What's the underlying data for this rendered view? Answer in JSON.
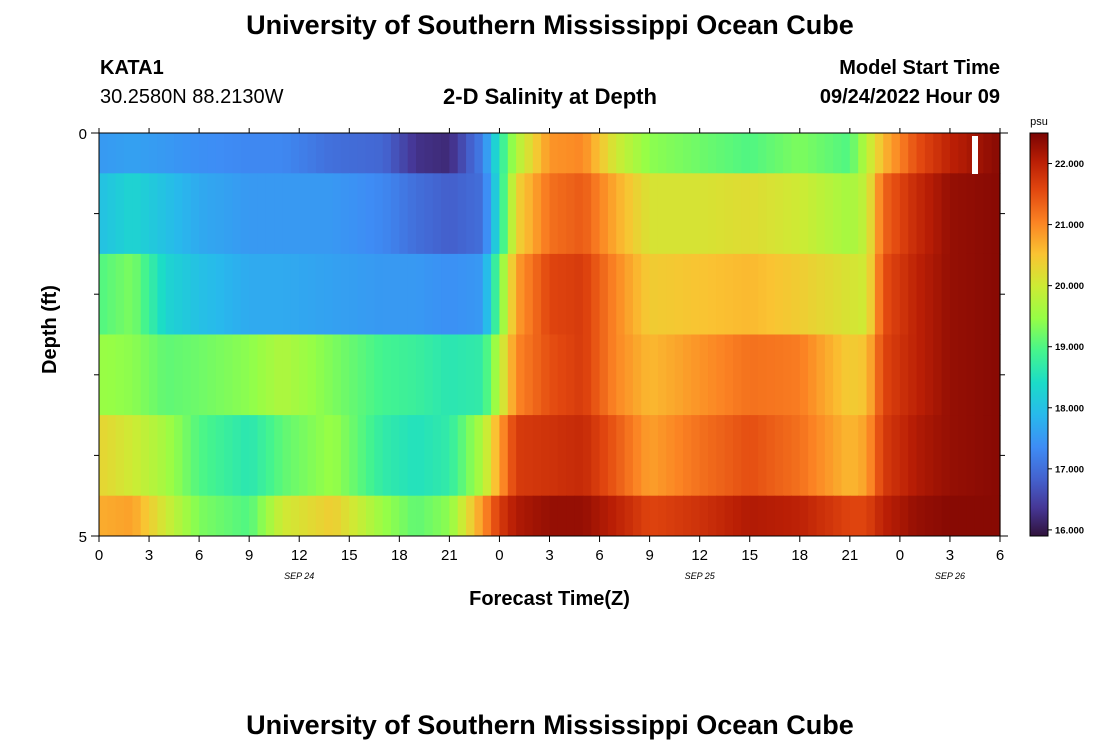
{
  "header": {
    "title": "University of Southern Mississippi Ocean Cube",
    "station": "KATA1",
    "coords": "30.2580N  88.2130W",
    "product": "2-D Salinity at Depth",
    "model_start_label": "Model Start Time",
    "model_start_value": "09/24/2022 Hour 09"
  },
  "footer": {
    "title": "University of Southern Mississippi Ocean Cube"
  },
  "chart_data": {
    "type": "heatmap",
    "title": "2-D Salinity at Depth",
    "xlabel": "Forecast Time(Z)",
    "ylabel": "Depth (ft)",
    "colorbar_unit": "psu",
    "colorbar_ticks": [
      "16.000",
      "17.000",
      "18.000",
      "19.000",
      "20.000",
      "21.000",
      "22.000"
    ],
    "colorbar_range": [
      15.9,
      22.5
    ],
    "x_tick_labels": [
      "0",
      "3",
      "6",
      "9",
      "12",
      "15",
      "18",
      "21",
      "0",
      "3",
      "6",
      "9",
      "12",
      "15",
      "18",
      "21",
      "0",
      "3",
      "6"
    ],
    "date_labels": [
      {
        "label": "SEP 24",
        "hour": 12
      },
      {
        "label": "SEP 25",
        "hour": 36
      },
      {
        "label": "SEP 26",
        "hour": 51
      }
    ],
    "x_range_hours": [
      0,
      54
    ],
    "y_tick_labels": [
      "0",
      "5"
    ],
    "y_range": [
      0,
      5
    ],
    "current_time_marker_hour": 52.5,
    "depth_rows": [
      0,
      1,
      2,
      3,
      4,
      5
    ],
    "salinity_keyframes": [
      {
        "hour": 0,
        "rows": [
          17.5,
          18.0,
          19.0,
          19.5,
          20.3,
          20.7
        ]
      },
      {
        "hour": 2,
        "rows": [
          17.6,
          18.3,
          19.3,
          19.4,
          20.0,
          20.8
        ]
      },
      {
        "hour": 4,
        "rows": [
          17.5,
          18.0,
          18.3,
          19.1,
          19.6,
          20.0
        ]
      },
      {
        "hour": 6,
        "rows": [
          17.4,
          17.7,
          18.0,
          19.2,
          19.0,
          19.3
        ]
      },
      {
        "hour": 9,
        "rows": [
          17.3,
          17.5,
          17.7,
          19.4,
          18.6,
          19.0
        ]
      },
      {
        "hour": 11,
        "rows": [
          17.3,
          17.5,
          17.7,
          19.7,
          19.1,
          20.0
        ]
      },
      {
        "hour": 14,
        "rows": [
          17.0,
          17.5,
          17.6,
          19.3,
          19.5,
          20.4
        ]
      },
      {
        "hour": 17,
        "rows": [
          16.9,
          17.3,
          17.5,
          18.9,
          18.7,
          19.5
        ]
      },
      {
        "hour": 19,
        "rows": [
          16.3,
          17.0,
          17.5,
          18.8,
          18.5,
          19.1
        ]
      },
      {
        "hour": 21,
        "rows": [
          16.2,
          16.8,
          17.4,
          18.6,
          18.7,
          19.4
        ]
      },
      {
        "hour": 23,
        "rows": [
          17.2,
          17.0,
          17.5,
          18.7,
          19.7,
          20.9
        ]
      },
      {
        "hour": 24,
        "rows": [
          18.6,
          18.5,
          19.2,
          19.8,
          20.8,
          21.7
        ]
      },
      {
        "hour": 25,
        "rows": [
          19.7,
          20.3,
          20.8,
          21.0,
          21.7,
          22.1
        ]
      },
      {
        "hour": 27,
        "rows": [
          20.9,
          21.2,
          21.6,
          21.5,
          21.8,
          22.3
        ]
      },
      {
        "hour": 29,
        "rows": [
          21.0,
          21.4,
          21.7,
          21.7,
          21.9,
          22.3
        ]
      },
      {
        "hour": 31,
        "rows": [
          20.0,
          20.7,
          21.0,
          21.0,
          21.4,
          22.0
        ]
      },
      {
        "hour": 33,
        "rows": [
          19.4,
          20.1,
          20.4,
          20.6,
          20.8,
          21.6
        ]
      },
      {
        "hour": 36,
        "rows": [
          19.2,
          20.1,
          20.5,
          20.9,
          21.2,
          21.8
        ]
      },
      {
        "hour": 39,
        "rows": [
          19.0,
          20.2,
          20.6,
          21.2,
          21.5,
          22.1
        ]
      },
      {
        "hour": 42,
        "rows": [
          19.3,
          20.0,
          20.4,
          21.1,
          21.2,
          22.0
        ]
      },
      {
        "hour": 45,
        "rows": [
          19.0,
          19.6,
          20.1,
          20.4,
          20.6,
          21.6
        ]
      },
      {
        "hour": 46,
        "rows": [
          19.8,
          19.9,
          20.0,
          20.5,
          20.8,
          21.6
        ]
      },
      {
        "hour": 47,
        "rows": [
          20.6,
          21.3,
          21.5,
          21.6,
          21.7,
          22.0
        ]
      },
      {
        "hour": 49,
        "rows": [
          21.5,
          21.9,
          22.0,
          22.0,
          22.1,
          22.3
        ]
      },
      {
        "hour": 51,
        "rows": [
          22.0,
          22.3,
          22.3,
          22.3,
          22.3,
          22.4
        ]
      },
      {
        "hour": 54,
        "rows": [
          22.4,
          22.4,
          22.4,
          22.4,
          22.4,
          22.4
        ]
      }
    ]
  }
}
